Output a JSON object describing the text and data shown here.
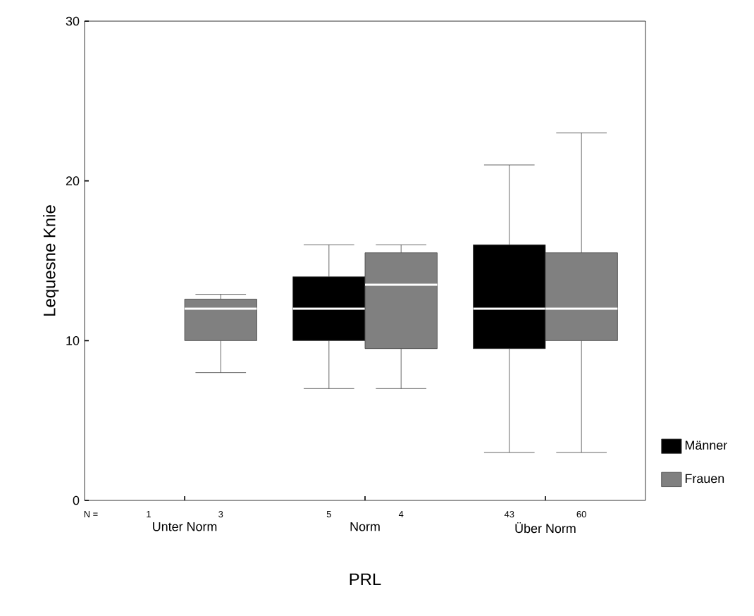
{
  "chart_data": {
    "type": "box",
    "xlabel": "PRL",
    "ylabel": "Lequesne Knie",
    "categories": [
      "Unter Norm",
      "Norm",
      "Über Norm"
    ],
    "series": [
      {
        "name": "Männer",
        "color": "#000000",
        "boxes": [
          null,
          {
            "low": 7,
            "q1": 10,
            "median": 12,
            "q3": 14,
            "high": 16
          },
          {
            "low": 3,
            "q1": 9.5,
            "median": 12,
            "q3": 16,
            "high": 21
          }
        ]
      },
      {
        "name": "Frauen",
        "color": "#808080",
        "boxes": [
          {
            "low": 8,
            "q1": 10,
            "median": 12,
            "q3": 12.6,
            "high": 12.9
          },
          {
            "low": 7,
            "q1": 9.5,
            "median": 13.5,
            "q3": 15.5,
            "high": 16
          },
          {
            "low": 3,
            "q1": 10,
            "median": 12,
            "q3": 15.5,
            "high": 23
          }
        ]
      }
    ],
    "ylim": [
      0,
      30
    ],
    "yticks": [
      0,
      10,
      20,
      30
    ],
    "legend": "right",
    "annotations": [
      "N =",
      "1",
      "3",
      "5",
      "4",
      "43",
      "60"
    ]
  }
}
